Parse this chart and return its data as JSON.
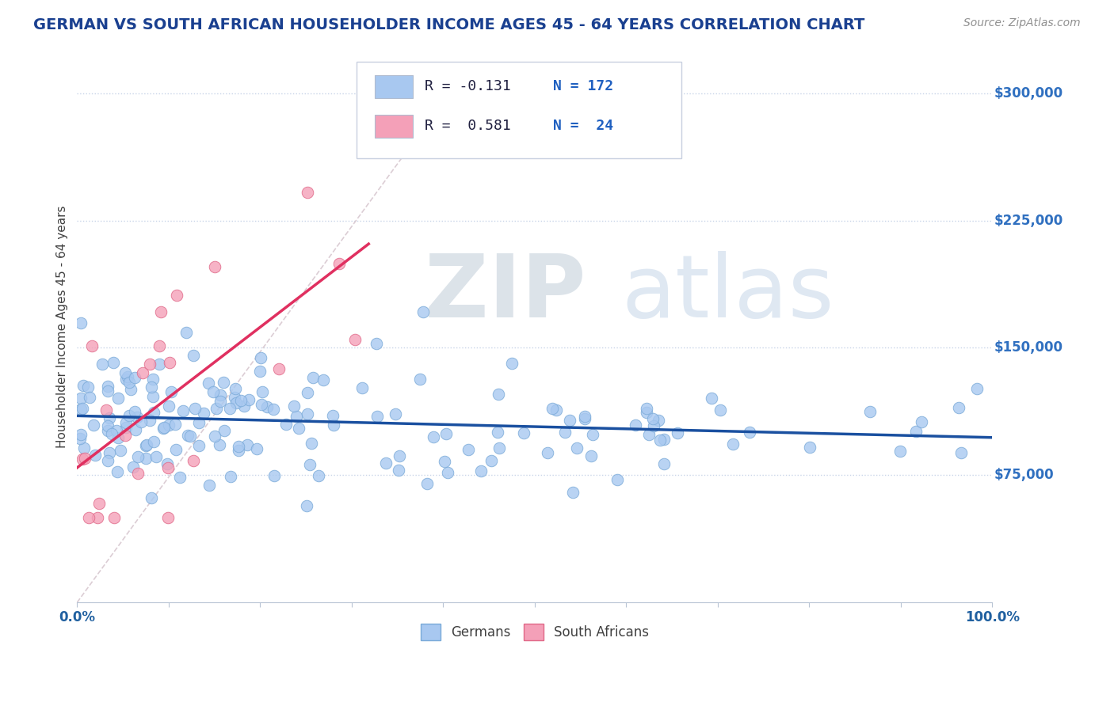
{
  "title": "GERMAN VS SOUTH AFRICAN HOUSEHOLDER INCOME AGES 45 - 64 YEARS CORRELATION CHART",
  "source": "Source: ZipAtlas.com",
  "ylabel": "Householder Income Ages 45 - 64 years",
  "xlim": [
    0,
    1.0
  ],
  "ylim": [
    0,
    325000
  ],
  "yticks": [
    0,
    75000,
    150000,
    225000,
    300000
  ],
  "ytick_labels": [
    "",
    "$75,000",
    "$150,000",
    "$225,000",
    "$300,000"
  ],
  "watermark_zip": "ZIP",
  "watermark_atlas": "atlas",
  "german_color": "#a8c8f0",
  "german_edge": "#7aaad8",
  "sa_color": "#f4a0b8",
  "sa_edge": "#e06888",
  "german_line_color": "#1a50a0",
  "sa_line_color": "#e03060",
  "diag_line_color": "#d8c8d0",
  "background_color": "#ffffff",
  "grid_color": "#c8d4e8",
  "title_color": "#1a4090",
  "axis_label_color": "#404040",
  "ytick_color": "#3070c0",
  "source_color": "#909090",
  "legend_box_color": "#d8dce8",
  "legend_text_color": "#202040",
  "legend_val_color": "#2060c0",
  "legend_n_color": "#2060c0",
  "bottom_legend_color": "#404040"
}
